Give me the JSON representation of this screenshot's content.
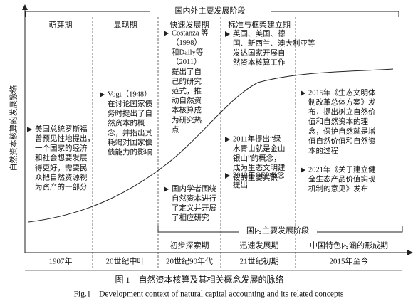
{
  "header": {
    "global_stages": "国内外主要发展阶段",
    "domestic_stages": "国内主要发展阶段",
    "axis_label": "自然资本核算的发展脉络"
  },
  "global_periods": [
    "萌芽期",
    "显现期",
    "快速发展期",
    "标准与框架建立期"
  ],
  "domestic_periods": [
    "初步探索期",
    "迅速发展期",
    "中国特色内涵的形成期"
  ],
  "timeline": [
    "1907年",
    "20世纪中叶",
    "20世纪90年代",
    "21世纪初期",
    "2015年至今"
  ],
  "notes": [
    {
      "lines": [
        "美国总统罗斯福",
        "曾预见性地提出，",
        "一个国家的经济",
        "和社会想要发展",
        "得更好，需要民",
        "众把自然资源视",
        "为资产的一部分"
      ]
    },
    {
      "lines": [
        "Vogt（1948）",
        "在讨论国家债",
        "务时提出了自",
        "然资本的概",
        "念，并指出其",
        "耗竭对国家偿",
        "债能力的影响"
      ]
    },
    {
      "lines": [
        "Costanza 等",
        "（1998）",
        "和Daily等",
        "（2011）",
        "提出了自",
        "己的研究",
        "范式，推",
        "动自然资",
        "本核算成",
        "为研究热",
        "点"
      ]
    },
    {
      "lines": [
        "国内学者围绕",
        "自然资本进行",
        "了定义并开展",
        "了相应研究"
      ]
    },
    {
      "lines": [
        "英国、美国、德",
        "国、新西兰、澳大利亚等",
        "发达国家开展自",
        "然资本核算工作"
      ]
    },
    {
      "lines": [
        "2011年提出“绿",
        "水青山就是金山",
        "银山”的概念，",
        "成为生态文明建",
        "设的重要共识"
      ]
    },
    {
      "lines": [
        "2012年GEP概念",
        "提出"
      ]
    },
    {
      "lines": [
        "2015年《生态文明体",
        "制改革总体方案》发",
        "布，提出树立自然价",
        "值和自然资本的理",
        "念，保护自然就是增",
        "值自然价值和自然资",
        "本的过程"
      ]
    },
    {
      "lines": [
        "2021年《关于建立健",
        "全生态产品价值实现",
        "机制的意见》发布"
      ]
    }
  ],
  "caption": {
    "zh": "图 1　自然资本核算及其相关概念发展的脉络",
    "en": "Fig.1　Development context of natural capital accounting and its related concepts"
  }
}
